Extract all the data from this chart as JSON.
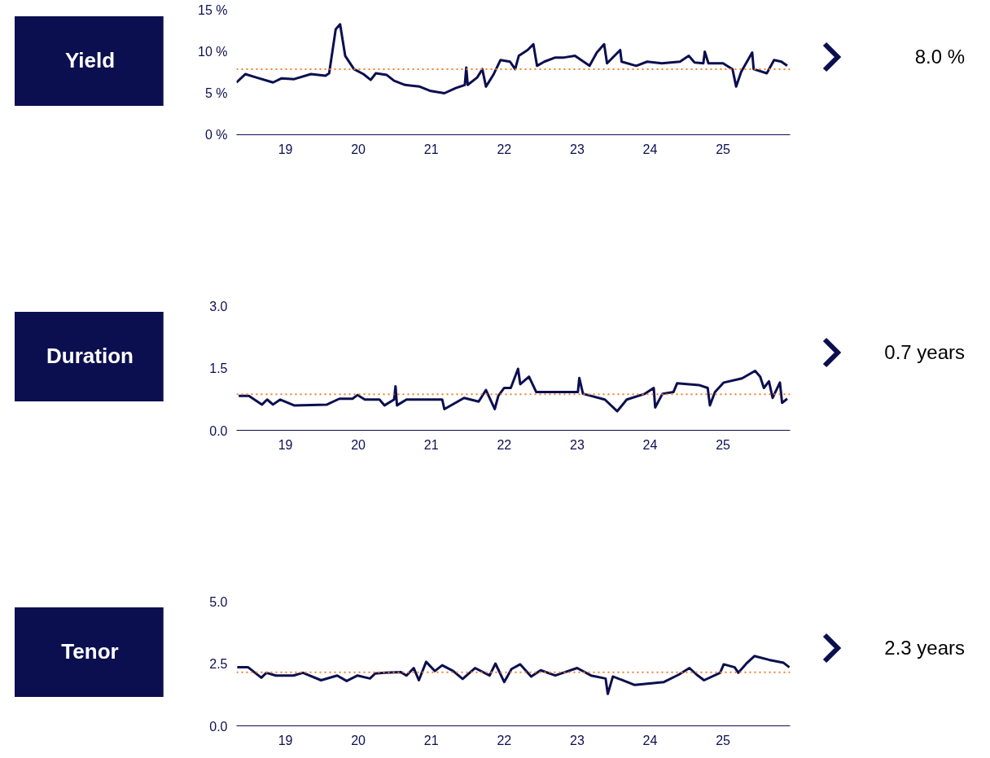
{
  "chart_data": [
    {
      "type": "line",
      "title": "Yield",
      "annotations": [
        "8.0 %"
      ],
      "line_style": "solid",
      "grid": false,
      "x": [
        2018.33,
        2018.45,
        2018.6,
        2018.83,
        2018.95,
        2019.12,
        2019.35,
        2019.55,
        2019.6,
        2019.69,
        2019.75,
        2019.82,
        2019.94,
        2020.07,
        2020.17,
        2020.24,
        2020.39,
        2020.49,
        2020.64,
        2020.84,
        2020.98,
        2021.18,
        2021.33,
        2021.46,
        2021.48,
        2021.5,
        2021.63,
        2021.7,
        2021.75,
        2021.85,
        2021.95,
        2022.08,
        2022.15,
        2022.2,
        2022.32,
        2022.4,
        2022.45,
        2022.55,
        2022.7,
        2022.82,
        2022.97,
        2023.17,
        2023.27,
        2023.37,
        2023.41,
        2023.59,
        2023.61,
        2023.81,
        2023.96,
        2024.16,
        2024.41,
        2024.53,
        2024.61,
        2024.73,
        2024.75,
        2024.8,
        2025.0,
        2025.13,
        2025.18,
        2025.25,
        2025.4,
        2025.42,
        2025.6,
        2025.7,
        2025.8,
        2025.88
      ],
      "series": [
        {
          "color": "#0b0f4f",
          "values": [
            6.3,
            7.3,
            6.9,
            6.3,
            6.8,
            6.7,
            7.3,
            7.1,
            7.4,
            12.7,
            13.3,
            9.5,
            7.9,
            7.3,
            6.6,
            7.4,
            7.2,
            6.5,
            6.0,
            5.8,
            5.3,
            5.0,
            5.6,
            6.0,
            8.1,
            6.0,
            6.9,
            7.9,
            5.8,
            7.2,
            9.0,
            8.8,
            7.9,
            9.5,
            10.2,
            10.9,
            8.3,
            8.8,
            9.3,
            9.3,
            9.5,
            8.3,
            9.9,
            10.9,
            8.6,
            10.2,
            8.8,
            8.3,
            8.8,
            8.6,
            8.8,
            9.5,
            8.7,
            8.6,
            10.0,
            8.6,
            8.6,
            7.9,
            5.8,
            7.6,
            9.9,
            7.9,
            7.4,
            9.0,
            8.8,
            8.3
          ]
        }
      ],
      "xlim": [
        2018.33,
        2025.92
      ],
      "ylim": [
        0,
        15
      ],
      "xticks": [
        {
          "value": 2019,
          "label": "19"
        },
        {
          "value": 2020,
          "label": "20"
        },
        {
          "value": 2021,
          "label": "21"
        },
        {
          "value": 2022,
          "label": "22"
        },
        {
          "value": 2023,
          "label": "23"
        },
        {
          "value": 2024,
          "label": "24"
        },
        {
          "value": 2025,
          "label": "25"
        }
      ],
      "yticks": [
        {
          "value": 0,
          "label": "0 %"
        },
        {
          "value": 5,
          "label": "5 %"
        },
        {
          "value": 10,
          "label": "10 %"
        },
        {
          "value": 15,
          "label": "15 %"
        }
      ],
      "ref_lines": [
        {
          "axis": "y",
          "value": 7.9,
          "color": "#f07d2e",
          "line_style": "dotted"
        }
      ]
    },
    {
      "type": "line",
      "title": "Duration",
      "annotations": [
        "0.7 years"
      ],
      "line_style": "solid",
      "grid": false,
      "x": [
        2018.36,
        2018.5,
        2018.68,
        2018.75,
        2018.83,
        2018.93,
        2019.12,
        2019.57,
        2019.74,
        2019.92,
        2019.99,
        2020.09,
        2020.29,
        2020.36,
        2020.49,
        2020.51,
        2020.53,
        2020.66,
        2021.15,
        2021.18,
        2021.45,
        2021.65,
        2021.75,
        2021.87,
        2021.92,
        2022.0,
        2022.09,
        2022.19,
        2022.22,
        2022.34,
        2022.44,
        2022.59,
        2022.84,
        2023.01,
        2023.03,
        2023.08,
        2023.38,
        2023.55,
        2023.68,
        2023.93,
        2024.05,
        2024.07,
        2024.17,
        2024.32,
        2024.37,
        2024.67,
        2024.79,
        2024.82,
        2024.89,
        2025.01,
        2025.26,
        2025.44,
        2025.51,
        2025.56,
        2025.63,
        2025.68,
        2025.78,
        2025.81,
        2025.88
      ],
      "series": [
        {
          "color": "#0b0f4f",
          "values": [
            0.83,
            0.83,
            0.62,
            0.74,
            0.62,
            0.74,
            0.6,
            0.62,
            0.76,
            0.76,
            0.85,
            0.74,
            0.74,
            0.6,
            0.74,
            1.06,
            0.6,
            0.74,
            0.74,
            0.51,
            0.78,
            0.69,
            0.97,
            0.51,
            0.83,
            1.02,
            1.02,
            1.48,
            1.11,
            1.29,
            0.92,
            0.92,
            0.92,
            0.92,
            1.26,
            0.88,
            0.74,
            0.46,
            0.74,
            0.88,
            1.02,
            0.55,
            0.88,
            0.92,
            1.13,
            1.09,
            1.02,
            0.6,
            0.92,
            1.15,
            1.25,
            1.43,
            1.29,
            1.02,
            1.18,
            0.78,
            1.15,
            0.66,
            0.76
          ]
        }
      ],
      "xlim": [
        2018.33,
        2025.92
      ],
      "ylim": [
        0,
        3
      ],
      "xticks": [
        {
          "value": 2019,
          "label": "19"
        },
        {
          "value": 2020,
          "label": "20"
        },
        {
          "value": 2021,
          "label": "21"
        },
        {
          "value": 2022,
          "label": "22"
        },
        {
          "value": 2023,
          "label": "23"
        },
        {
          "value": 2024,
          "label": "24"
        },
        {
          "value": 2025,
          "label": "25"
        }
      ],
      "yticks": [
        {
          "value": 0,
          "label": "0.0"
        },
        1.5,
        {
          "value": 3,
          "label": "3.0"
        }
      ],
      "ref_lines": [
        {
          "axis": "y",
          "value": 0.87,
          "color": "#f07d2e",
          "line_style": "dotted"
        }
      ]
    },
    {
      "type": "line",
      "title": "Tenor",
      "annotations": [
        "2.3 years"
      ],
      "line_style": "solid",
      "grid": false,
      "x": [
        2018.34,
        2018.49,
        2018.67,
        2018.74,
        2018.87,
        2019.11,
        2019.24,
        2019.49,
        2019.71,
        2019.84,
        2019.99,
        2020.16,
        2020.23,
        2020.36,
        2020.58,
        2020.66,
        2020.76,
        2020.83,
        2020.93,
        2021.05,
        2021.15,
        2021.3,
        2021.43,
        2021.6,
        2021.8,
        2021.88,
        2022.0,
        2022.1,
        2022.22,
        2022.37,
        2022.5,
        2022.7,
        2023.0,
        2023.19,
        2023.39,
        2023.42,
        2023.49,
        2023.79,
        2024.19,
        2024.39,
        2024.54,
        2024.64,
        2024.74,
        2024.96,
        2025.01,
        2025.16,
        2025.21,
        2025.33,
        2025.43,
        2025.63,
        2025.83,
        2025.91
      ],
      "series": [
        {
          "color": "#0b0f4f",
          "values": [
            2.35,
            2.35,
            1.93,
            2.13,
            2.02,
            2.02,
            2.13,
            1.83,
            2.02,
            1.8,
            2.02,
            1.9,
            2.1,
            2.13,
            2.16,
            2.02,
            2.32,
            1.83,
            2.57,
            2.2,
            2.43,
            2.2,
            1.88,
            2.32,
            2.02,
            2.5,
            1.76,
            2.28,
            2.47,
            1.98,
            2.23,
            2.02,
            2.32,
            2.02,
            1.9,
            1.28,
            1.98,
            1.64,
            1.76,
            2.05,
            2.32,
            2.05,
            1.83,
            2.13,
            2.47,
            2.35,
            2.13,
            2.53,
            2.8,
            2.65,
            2.53,
            2.35
          ]
        }
      ],
      "xlim": [
        2018.33,
        2025.92
      ],
      "ylim": [
        0,
        5
      ],
      "xticks": [
        {
          "value": 2019,
          "label": "19"
        },
        {
          "value": 2020,
          "label": "20"
        },
        {
          "value": 2021,
          "label": "21"
        },
        {
          "value": 2022,
          "label": "22"
        },
        {
          "value": 2023,
          "label": "23"
        },
        {
          "value": 2024,
          "label": "24"
        },
        {
          "value": 2025,
          "label": "25"
        }
      ],
      "yticks": [
        {
          "value": 0,
          "label": "0.0"
        },
        2.5,
        {
          "value": 5,
          "label": "5.0"
        }
      ],
      "ref_lines": [
        {
          "axis": "y",
          "value": 2.15,
          "color": "#f07d2e",
          "line_style": "dotted"
        }
      ]
    }
  ]
}
